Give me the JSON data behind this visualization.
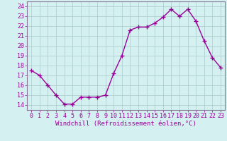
{
  "x": [
    0,
    1,
    2,
    3,
    4,
    5,
    6,
    7,
    8,
    9,
    10,
    11,
    12,
    13,
    14,
    15,
    16,
    17,
    18,
    19,
    20,
    21,
    22,
    23
  ],
  "y": [
    17.5,
    17.0,
    16.0,
    15.0,
    14.1,
    14.1,
    14.8,
    14.8,
    14.8,
    15.0,
    17.2,
    19.0,
    21.6,
    21.9,
    21.9,
    22.3,
    22.9,
    23.7,
    23.0,
    23.7,
    22.5,
    20.5,
    18.8,
    17.8
  ],
  "line_color": "#990099",
  "marker": "+",
  "marker_size": 4,
  "linewidth": 1.0,
  "markeredgewidth": 1.0,
  "xlim": [
    -0.5,
    23.5
  ],
  "ylim": [
    13.5,
    24.5
  ],
  "yticks": [
    14,
    15,
    16,
    17,
    18,
    19,
    20,
    21,
    22,
    23,
    24
  ],
  "xticks": [
    0,
    1,
    2,
    3,
    4,
    5,
    6,
    7,
    8,
    9,
    10,
    11,
    12,
    13,
    14,
    15,
    16,
    17,
    18,
    19,
    20,
    21,
    22,
    23
  ],
  "xlabel": "Windchill (Refroidissement éolien,°C)",
  "bg_color": "#d4f0f0",
  "grid_color": "#aacccc",
  "spine_color": "#887799",
  "tick_color": "#990099",
  "label_color": "#990099",
  "xlabel_fontsize": 6.5,
  "tick_fontsize": 6.0
}
